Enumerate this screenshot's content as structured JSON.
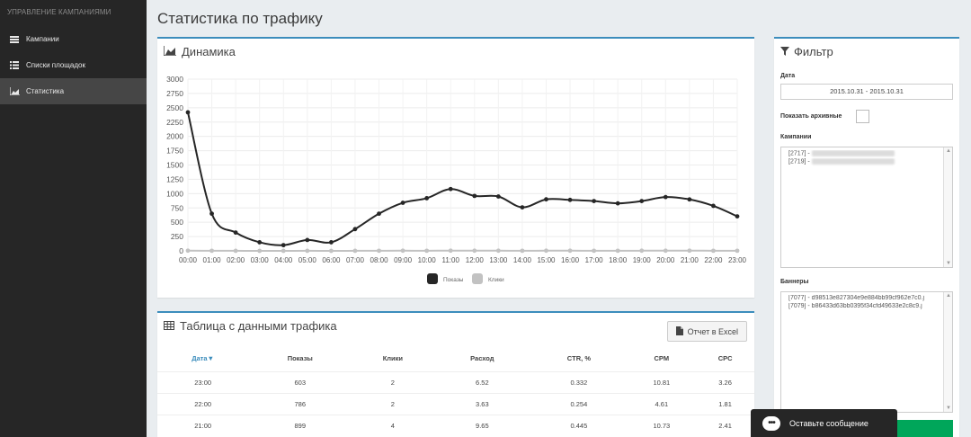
{
  "sidebar": {
    "header": "УПРАВЛЕНИЕ КАМПАНИЯМИ",
    "items": [
      {
        "label": "Кампании",
        "icon": "list-icon"
      },
      {
        "label": "Списки площадок",
        "icon": "list-ordered-icon"
      },
      {
        "label": "Статистика",
        "icon": "area-chart-icon",
        "active": true
      }
    ]
  },
  "page": {
    "title": "Статистика по трафику"
  },
  "dynamics": {
    "title": "Динамика",
    "legend": [
      "Показы",
      "Клики"
    ]
  },
  "chart_data": {
    "type": "line",
    "x": [
      "00:00",
      "01:00",
      "02:00",
      "03:00",
      "04:00",
      "05:00",
      "06:00",
      "07:00",
      "08:00",
      "09:00",
      "10:00",
      "11:00",
      "12:00",
      "13:00",
      "14:00",
      "15:00",
      "16:00",
      "17:00",
      "18:00",
      "19:00",
      "20:00",
      "21:00",
      "22:00",
      "23:00"
    ],
    "series": [
      {
        "name": "Показы",
        "color": "#262626",
        "values": [
          2420,
          650,
          320,
          150,
          100,
          190,
          150,
          380,
          650,
          840,
          920,
          1080,
          960,
          950,
          760,
          900,
          890,
          870,
          830,
          870,
          940,
          899,
          786,
          603
        ]
      },
      {
        "name": "Клики",
        "color": "#c2c2c2",
        "values": [
          4,
          2,
          1,
          0,
          0,
          1,
          0,
          1,
          2,
          3,
          2,
          4,
          3,
          3,
          2,
          3,
          3,
          2,
          2,
          3,
          3,
          4,
          2,
          2
        ]
      }
    ],
    "yticks": [
      0,
      250,
      500,
      750,
      1000,
      1250,
      1500,
      1750,
      2000,
      2250,
      2500,
      2750,
      3000
    ],
    "ylim": [
      0,
      3000
    ],
    "grid": true,
    "legend_position": "bottom"
  },
  "table": {
    "title": "Таблица с данными трафика",
    "export_label": "Отчет в Excel",
    "columns": [
      "Дата▼",
      "Показы",
      "Клики",
      "Расход",
      "CTR, %",
      "CPM",
      "CPC"
    ],
    "rows": [
      [
        "23:00",
        "603",
        "2",
        "6.52",
        "0.332",
        "10.81",
        "3.26"
      ],
      [
        "22:00",
        "786",
        "2",
        "3.63",
        "0.254",
        "4.61",
        "1.81"
      ],
      [
        "21:00",
        "899",
        "4",
        "9.65",
        "0.445",
        "10.73",
        "2.41"
      ]
    ]
  },
  "filter": {
    "title": "Фильтр",
    "date_label": "Дата",
    "date_value": "2015.10.31 - 2015.10.31",
    "archive_label": "Показать архивные",
    "campaigns_label": "Кампании",
    "campaigns": [
      "[2717] -",
      "[2719] -"
    ],
    "banners_label": "Баннеры",
    "banners": [
      "[7077] - d98513e827304e9e884bb99cf962e7c0.j",
      "[7079] - b86433d63bb0395f34cfd49633e2c8c9.j"
    ]
  },
  "chat": {
    "label": "Оставьте сообщение"
  },
  "colors": {
    "accent": "#3c8dbc",
    "sidebar": "#262626",
    "green": "#00a65a"
  }
}
